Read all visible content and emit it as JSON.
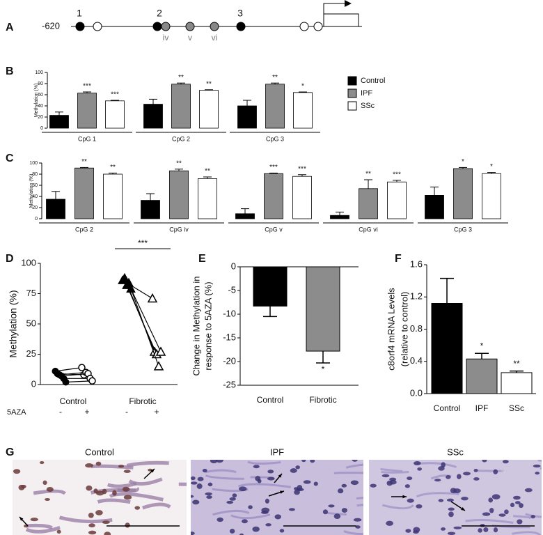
{
  "panel_labels": [
    "A",
    "B",
    "C",
    "D",
    "E",
    "F",
    "G"
  ],
  "diagram": {
    "start": "-620",
    "site_numbers": [
      "1",
      "2",
      "3"
    ],
    "site_letters": [
      "iv",
      "v",
      "vi"
    ]
  },
  "chart_data": [
    {
      "type": "grouped_bar",
      "ylabel": "Methylation (%)",
      "ylim": [
        0,
        100
      ],
      "yticks": [
        0,
        20,
        40,
        60,
        80,
        100
      ],
      "categories": [
        "CpG 1",
        "CpG 2",
        "CpG 3"
      ],
      "legend": "right",
      "series": [
        {
          "name": "Control",
          "color": "#000000",
          "values": [
            23,
            43,
            40
          ],
          "errors": [
            6,
            9,
            10
          ]
        },
        {
          "name": "IPF",
          "color": "#8c8c8c",
          "values": [
            63,
            79,
            79
          ],
          "errors": [
            2,
            2,
            2
          ],
          "stars": [
            "***",
            "**",
            "**"
          ]
        },
        {
          "name": "SSc",
          "color": "#ffffff",
          "values": [
            49,
            68,
            64
          ],
          "errors": [
            1,
            1,
            1
          ],
          "stars": [
            "***",
            "**",
            "*"
          ]
        }
      ]
    },
    {
      "type": "grouped_bar",
      "ylabel": "Methylation (%)",
      "ylim": [
        0,
        100
      ],
      "yticks": [
        0,
        20,
        40,
        60,
        80,
        100
      ],
      "categories": [
        "CpG 2",
        "CpG iv",
        "CpG v",
        "CpG vi",
        "CpG 3"
      ],
      "series": [
        {
          "name": "Control",
          "color": "#000000",
          "values": [
            35,
            33,
            9,
            6,
            42
          ],
          "errors": [
            14,
            12,
            9,
            6,
            15
          ]
        },
        {
          "name": "IPF",
          "color": "#8c8c8c",
          "values": [
            91,
            86,
            81,
            54,
            90
          ],
          "errors": [
            1,
            3,
            1,
            16,
            2
          ],
          "stars": [
            "**",
            "**",
            "***",
            "**",
            "*"
          ]
        },
        {
          "name": "SSc",
          "color": "#ffffff",
          "values": [
            80,
            72,
            76,
            66,
            81
          ],
          "errors": [
            2,
            3,
            3,
            3,
            2
          ],
          "stars": [
            "**",
            "**",
            "***",
            "***",
            "*"
          ]
        }
      ]
    },
    {
      "type": "paired_scatter",
      "ylabel": "Methylation (%)",
      "ylim": [
        0,
        100
      ],
      "yticks": [
        0,
        25,
        50,
        75,
        100
      ],
      "categories": [
        "Control",
        "Fibrotic"
      ],
      "treatment": "5AZA",
      "treatment_levels": [
        "-",
        "+"
      ],
      "before": [
        [
          11,
          9,
          8,
          7,
          5,
          2
        ],
        [
          86,
          88,
          82,
          84,
          79
        ]
      ],
      "after": [
        [
          14,
          8,
          10,
          9,
          5,
          3
        ],
        [
          71,
          27,
          25,
          15,
          27
        ]
      ],
      "annotation": "***"
    },
    {
      "type": "bar",
      "ylabel": [
        "Change in Methylation in",
        "response to 5AZA (%)"
      ],
      "categories": [
        "Control",
        "Fibrotic"
      ],
      "values": [
        -8.3,
        -17.8
      ],
      "errors": [
        2.2,
        2.5
      ],
      "stars": [
        null,
        "*"
      ],
      "colors": [
        "#000000",
        "#8c8c8c"
      ],
      "ylim": [
        -25,
        0
      ],
      "yticks": [
        0,
        -5,
        -10,
        -15,
        -20,
        -25
      ]
    },
    {
      "type": "bar",
      "ylabel": [
        "c8orf4 mRNA Levels",
        "(relative to control)"
      ],
      "categories": [
        "Control",
        "IPF",
        "SSc"
      ],
      "values": [
        1.12,
        0.43,
        0.26
      ],
      "errors": [
        0.31,
        0.07,
        0.02
      ],
      "stars": [
        null,
        "*",
        "**"
      ],
      "colors": [
        "#000000",
        "#8c8c8c",
        "#ffffff"
      ],
      "ylim": [
        0,
        1.6
      ],
      "yticks": [
        {
          "value": 0,
          "label": "0.0"
        },
        0.4,
        0.8,
        1.2,
        1.6
      ]
    }
  ],
  "micrographs": {
    "titles": [
      "Control",
      "IPF",
      "SSc"
    ]
  }
}
